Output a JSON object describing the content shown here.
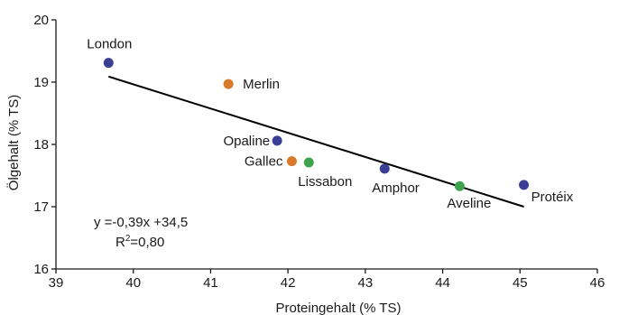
{
  "chart_data": {
    "type": "scatter",
    "title": "",
    "xlabel": "Proteingehalt (% TS)",
    "ylabel": "Ölgehalt  (% TS)",
    "xlim": [
      39,
      46
    ],
    "ylim": [
      16,
      20
    ],
    "xticks": [
      "39",
      "40",
      "41",
      "42",
      "43",
      "44",
      "45",
      "46"
    ],
    "yticks": [
      "16",
      "17",
      "18",
      "19",
      "20"
    ],
    "grid": false,
    "colors": {
      "blue": "#3a3f94",
      "orange": "#d9792a",
      "green": "#3fa34d"
    },
    "points": [
      {
        "label": "London",
        "x": 39.68,
        "y": 19.31,
        "color": "#3a3f94"
      },
      {
        "label": "Merlin",
        "x": 41.23,
        "y": 18.97,
        "color": "#d9792a"
      },
      {
        "label": "Opaline",
        "x": 41.86,
        "y": 18.06,
        "color": "#3a3f94"
      },
      {
        "label": "Gallec",
        "x": 42.05,
        "y": 17.73,
        "color": "#d9792a"
      },
      {
        "label": "Lissabon",
        "x": 42.27,
        "y": 17.71,
        "color": "#3fa34d"
      },
      {
        "label": "Amphor",
        "x": 43.25,
        "y": 17.61,
        "color": "#3a3f94"
      },
      {
        "label": "Aveline",
        "x": 44.22,
        "y": 17.33,
        "color": "#3fa34d"
      },
      {
        "label": "Protéix",
        "x": 45.05,
        "y": 17.35,
        "color": "#3a3f94"
      }
    ],
    "trendline": {
      "x": [
        39.68,
        45.05
      ],
      "y": [
        19.09,
        17.0
      ]
    },
    "annotations": {
      "equation": "y =-0,39x +34,5",
      "r2_prefix": "R",
      "r2_exp": "2",
      "r2_suffix": "=0,80"
    }
  }
}
